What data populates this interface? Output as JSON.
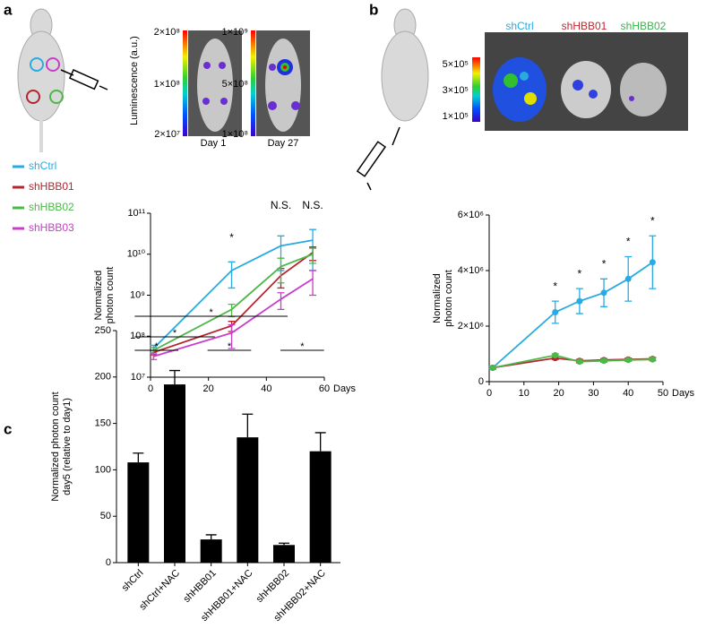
{
  "panel_labels": [
    "a",
    "b",
    "c"
  ],
  "panel_a_images": {
    "ylabel": "Luminescence (a.u.)",
    "images": [
      {
        "label": "Day 1",
        "scale": [
          "2×10⁸",
          "1×10⁸",
          "2×10⁷"
        ]
      },
      {
        "label": "Day 27",
        "scale": [
          "1×10⁹",
          "5×10⁸",
          "1×10⁸"
        ]
      }
    ]
  },
  "panel_b_images": {
    "labels": [
      {
        "text": "shCtrl",
        "color": "#29abe2"
      },
      {
        "text": "shHBB01",
        "color": "#c1272d"
      },
      {
        "text": "shHBB02",
        "color": "#39b54a"
      }
    ],
    "scale": [
      "5×10⁵",
      "3×10⁵",
      "1×10⁵"
    ]
  },
  "chart_data": [
    {
      "type": "line",
      "log_y": true,
      "legend": "outside-left",
      "ylabel": [
        "Normalized",
        "photon count"
      ],
      "xlabel": "Days",
      "x": [
        1,
        28,
        45,
        56
      ],
      "xlim": [
        0,
        60
      ],
      "xticks": [
        0,
        20,
        40,
        60
      ],
      "ylim": [
        10000000,
        100000000000
      ],
      "yticks": [
        {
          "value": 10000000,
          "label": "10⁷"
        },
        {
          "value": 100000000,
          "label": "10⁸"
        },
        {
          "value": 1000000000,
          "label": "10⁹"
        },
        {
          "value": 10000000000,
          "label": "10¹⁰"
        },
        {
          "value": 100000000000,
          "label": "10¹¹"
        }
      ],
      "series": [
        {
          "name": "shCtrl",
          "color": "#29abe2",
          "values": [
            50000000,
            4000000000,
            16000000000,
            22000000000
          ],
          "errors": [
            10000000,
            2500000000,
            12000000000,
            18000000000
          ]
        },
        {
          "name": "shHBB01",
          "color": "#b5252f",
          "values": [
            40000000,
            180000000,
            3000000000,
            11000000000
          ],
          "errors": [
            5000000,
            50000000,
            1500000000,
            4000000000
          ]
        },
        {
          "name": "shHBB02",
          "color": "#4cb848",
          "values": [
            45000000,
            450000000,
            5000000000,
            10000000000
          ],
          "errors": [
            8000000,
            150000000,
            3000000000,
            4000000000
          ]
        },
        {
          "name": "shHBB03",
          "color": "#c83ec8",
          "values": [
            32000000,
            120000000,
            800000000,
            2500000000
          ],
          "errors": [
            5000000,
            70000000,
            350000000,
            1500000000
          ]
        }
      ],
      "annotations": [
        {
          "x": 28,
          "text": "*"
        },
        {
          "x": 45,
          "text": "N.S."
        },
        {
          "x": 56,
          "text": "N.S."
        }
      ]
    },
    {
      "type": "line",
      "log_y": false,
      "ylabel": [
        "Normalized",
        "photon count"
      ],
      "xlabel": "Days",
      "x": [
        1,
        19,
        26,
        33,
        40,
        47
      ],
      "xlim": [
        0,
        50
      ],
      "xticks": [
        0,
        10,
        20,
        30,
        40,
        50
      ],
      "ylim": [
        0,
        6000000
      ],
      "yticks": [
        0,
        {
          "value": 2000000,
          "label": "2×10⁶"
        },
        {
          "value": 4000000,
          "label": "4×10⁶"
        },
        {
          "value": 6000000,
          "label": "6×10⁶"
        }
      ],
      "series": [
        {
          "name": "shCtrl",
          "color": "#29abe2",
          "values": [
            500000,
            2500000,
            2900000,
            3200000,
            3700000,
            4300000
          ],
          "errors": [
            50000,
            400000,
            450000,
            500000,
            800000,
            950000
          ]
        },
        {
          "name": "shHBB01",
          "color": "#b5252f",
          "values": [
            500000,
            850000,
            750000,
            780000,
            800000,
            820000
          ],
          "errors": [
            30000,
            50000,
            50000,
            50000,
            50000,
            50000
          ]
        },
        {
          "name": "shHBB02",
          "color": "#4cb848",
          "values": [
            500000,
            950000,
            720000,
            750000,
            780000,
            800000
          ],
          "errors": [
            30000,
            50000,
            50000,
            50000,
            50000,
            50000
          ]
        }
      ],
      "annotations": [
        {
          "x": 19,
          "text": "*"
        },
        {
          "x": 26,
          "text": "*"
        },
        {
          "x": 33,
          "text": "*"
        },
        {
          "x": 40,
          "text": "*"
        },
        {
          "x": 47,
          "text": "*"
        }
      ]
    },
    {
      "type": "bar",
      "color": "#000000",
      "ylabel": [
        "Normalized photon count",
        "day5 (relative to day1)"
      ],
      "categories": [
        "shCtrl",
        "shCtrl+NAC",
        "shHBB01",
        "shHBB01+NAC",
        "shHBB02",
        "shHBB02+NAC"
      ],
      "values": [
        108,
        192,
        25,
        135,
        19,
        120
      ],
      "errors": [
        10,
        15,
        5,
        25,
        2,
        20
      ],
      "ylim": [
        0,
        250
      ],
      "yticks": [
        0,
        50,
        100,
        150,
        200,
        250
      ],
      "comparisons": [
        {
          "from": 0,
          "to": 1,
          "label": "*"
        },
        {
          "from": 0,
          "to": 2,
          "label": "*"
        },
        {
          "from": 0,
          "to": 4,
          "label": "*"
        },
        {
          "from": 2,
          "to": 3,
          "label": "*"
        },
        {
          "from": 4,
          "to": 5,
          "label": "*"
        }
      ]
    }
  ]
}
